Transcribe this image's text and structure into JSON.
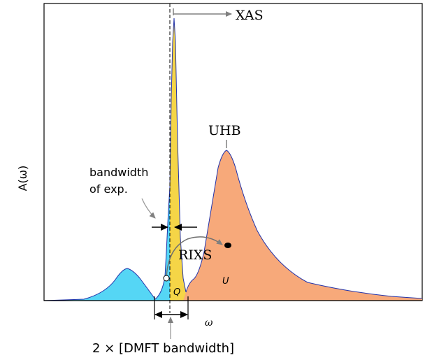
{
  "axes": {
    "ylabel": "A(ω)",
    "xlabel": "ω"
  },
  "labels": {
    "xas": "XAS",
    "uhb": "UHB",
    "rixs": "RIXS",
    "q": "Q",
    "u": "U",
    "bandwidth_line1": "bandwidth",
    "bandwidth_line2": "of exp.",
    "dmft": "2 × [DMFT bandwidth]"
  },
  "colors": {
    "lower_band": "#55d6f5",
    "quasiparticle_peak": "#f5d547",
    "upper_hubbard_band": "#f7a97a",
    "curve_outline": "#2233aa",
    "annotation_arrow": "#808080"
  }
}
